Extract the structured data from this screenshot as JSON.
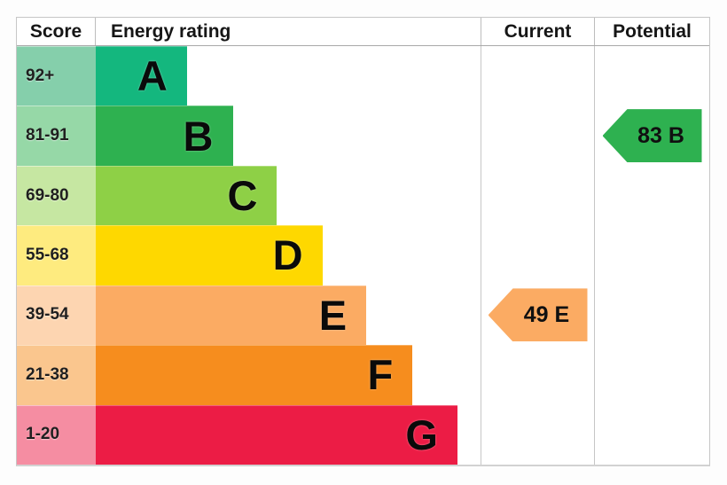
{
  "header": {
    "score": "Score",
    "rating": "Energy rating",
    "current": "Current",
    "potential": "Potential"
  },
  "bands": [
    {
      "grade": "A",
      "score": "92+",
      "width": "23.7%",
      "bar_color": "#14b77e",
      "score_color": "#85cfab"
    },
    {
      "grade": "B",
      "score": "81-91",
      "width": "35.6%",
      "bar_color": "#2eb150",
      "score_color": "#96d8a7"
    },
    {
      "grade": "C",
      "score": "69-80",
      "width": "47.1%",
      "bar_color": "#8ed046",
      "score_color": "#c6e7a2"
    },
    {
      "grade": "D",
      "score": "55-68",
      "width": "58.9%",
      "bar_color": "#fed800",
      "score_color": "#feeb7f"
    },
    {
      "grade": "E",
      "score": "39-54",
      "width": "70.3%",
      "bar_color": "#fbab63",
      "score_color": "#fdd5b1"
    },
    {
      "grade": "F",
      "score": "21-38",
      "width": "82.3%",
      "bar_color": "#f68d1e",
      "score_color": "#fac68e"
    },
    {
      "grade": "G",
      "score": "1-20",
      "width": "94.0%",
      "bar_color": "#ec1c45",
      "score_color": "#f58da2"
    }
  ],
  "current": {
    "label": "49 E",
    "color": "#fbab63"
  },
  "potential": {
    "label": "83 B",
    "color": "#2eb150"
  },
  "chart_data": {
    "type": "bar",
    "title": "Energy rating (EPC)",
    "categories": [
      "A",
      "B",
      "C",
      "D",
      "E",
      "F",
      "G"
    ],
    "score_ranges": [
      "92+",
      "81-91",
      "69-80",
      "55-68",
      "39-54",
      "21-38",
      "1-20"
    ],
    "bar_widths_pct": [
      23.7,
      35.6,
      47.1,
      58.9,
      70.3,
      82.3,
      94.0
    ],
    "bar_colors": [
      "#14b77e",
      "#2eb150",
      "#8ed046",
      "#fed800",
      "#fbab63",
      "#f68d1e",
      "#ec1c45"
    ],
    "columns": [
      "Score",
      "Energy rating",
      "Current",
      "Potential"
    ],
    "current": {
      "score": 49,
      "grade": "E",
      "row": "39-54"
    },
    "potential": {
      "score": 83,
      "grade": "B",
      "row": "81-91"
    }
  }
}
